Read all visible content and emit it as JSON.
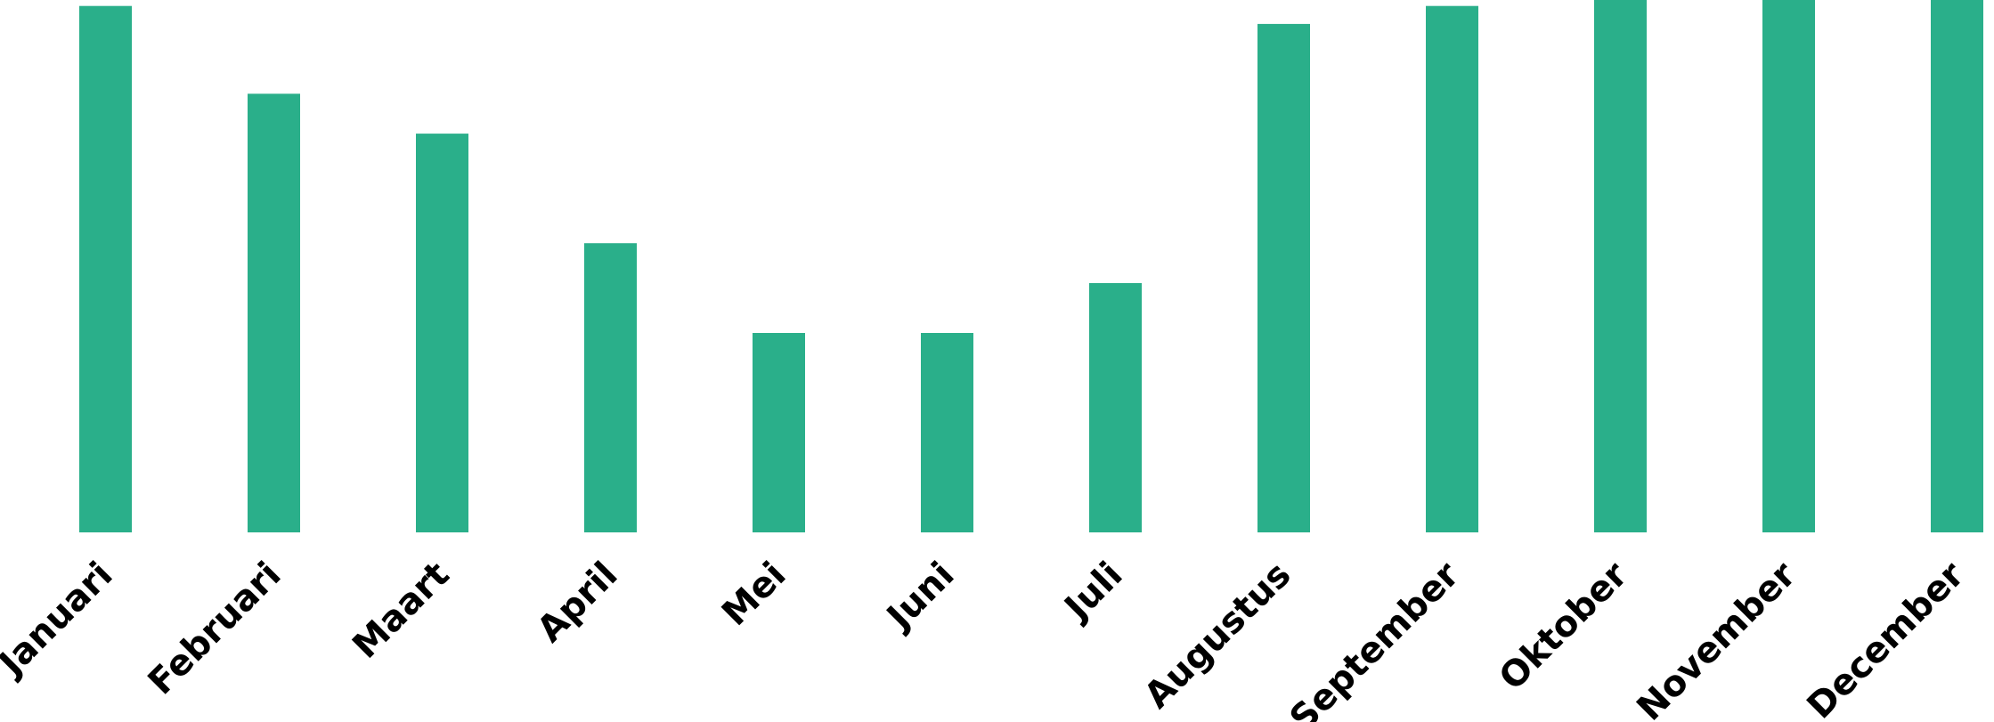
{
  "chart_data": {
    "type": "bar",
    "title": "",
    "xlabel": "",
    "ylabel": "",
    "categories": [
      "Januari",
      "Februari",
      "Maart",
      "April",
      "Mei",
      "Juni",
      "Juli",
      "Augustus",
      "September",
      "Oktober",
      "November",
      "December"
    ],
    "values": [
      26.4,
      22,
      20,
      14.5,
      10,
      10,
      12.5,
      25.5,
      26.4,
      27,
      27,
      27
    ],
    "ylim": [
      0,
      26.7
    ],
    "grid": false,
    "legend": "none",
    "bar_color": "#2aaf8a"
  }
}
